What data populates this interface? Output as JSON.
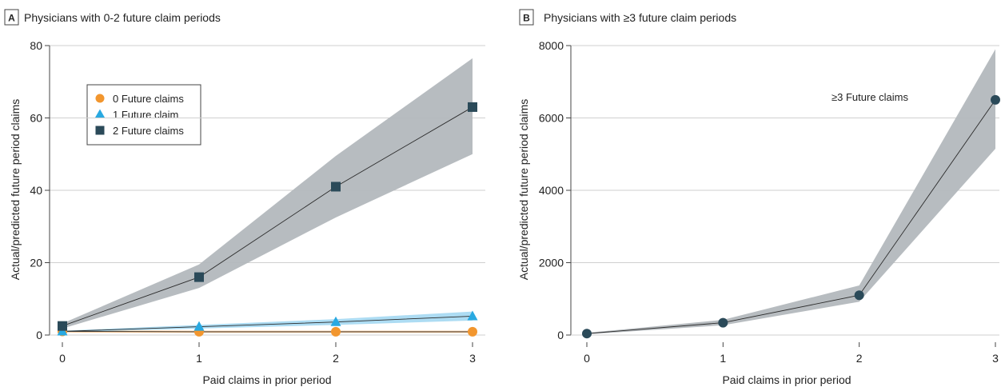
{
  "chart_data": [
    {
      "panel_letter": "A",
      "title": "Physicians with 0-2 future claim periods",
      "type": "line",
      "xlabel": "Paid claims in prior period",
      "ylabel": "Actual/predicted future period claims",
      "xlim": [
        0,
        3
      ],
      "ylim": [
        0,
        80
      ],
      "xticks": [
        0,
        1,
        2,
        3
      ],
      "yticks": [
        0,
        20,
        40,
        60,
        80
      ],
      "grid": "horizontal",
      "legend_position": "top-left",
      "series": [
        {
          "name": "0 Future claims",
          "marker": "circle",
          "color": "#f2962e",
          "band_color": "#f8c793",
          "x": [
            0,
            1,
            2,
            3
          ],
          "y": [
            1.0,
            0.9,
            0.9,
            0.9
          ],
          "lower": [
            0.7,
            0.6,
            0.6,
            0.6
          ],
          "upper": [
            1.3,
            1.2,
            1.2,
            1.2
          ]
        },
        {
          "name": "1 Future claim",
          "marker": "triangle",
          "color": "#29a9e1",
          "band_color": "#a9daf2",
          "x": [
            0,
            1,
            2,
            3
          ],
          "y": [
            1.0,
            2.3,
            3.6,
            5.2
          ],
          "lower": [
            0.8,
            1.8,
            2.8,
            4.0
          ],
          "upper": [
            1.2,
            2.8,
            4.4,
            6.5
          ]
        },
        {
          "name": "2 Future claims",
          "marker": "square",
          "color": "#2b4a59",
          "band_color": "#b3b8bd",
          "x": [
            0,
            1,
            2,
            3
          ],
          "y": [
            2.5,
            16,
            41,
            63
          ],
          "lower": [
            1.8,
            13,
            32.5,
            50
          ],
          "upper": [
            3.2,
            19.5,
            49.5,
            76.5
          ]
        }
      ]
    },
    {
      "panel_letter": "B",
      "title": "Physicians with ≥3 future claim periods",
      "type": "line",
      "xlabel": "Paid claims in prior period",
      "ylabel": "Actual/predicted future period claims",
      "xlim": [
        0,
        3
      ],
      "ylim": [
        0,
        8000
      ],
      "xticks": [
        0,
        1,
        2,
        3
      ],
      "yticks": [
        0,
        2000,
        4000,
        6000,
        8000
      ],
      "grid": "horizontal",
      "annotation": "≥3 Future claims",
      "series": [
        {
          "name": "≥3 Future claims",
          "marker": "circle",
          "color": "#2b4a59",
          "band_color": "#b3b8bd",
          "x": [
            0,
            1,
            2,
            3
          ],
          "y": [
            40,
            340,
            1100,
            6500
          ],
          "lower": [
            20,
            270,
            920,
            5150
          ],
          "upper": [
            60,
            420,
            1370,
            7900
          ]
        }
      ]
    }
  ]
}
